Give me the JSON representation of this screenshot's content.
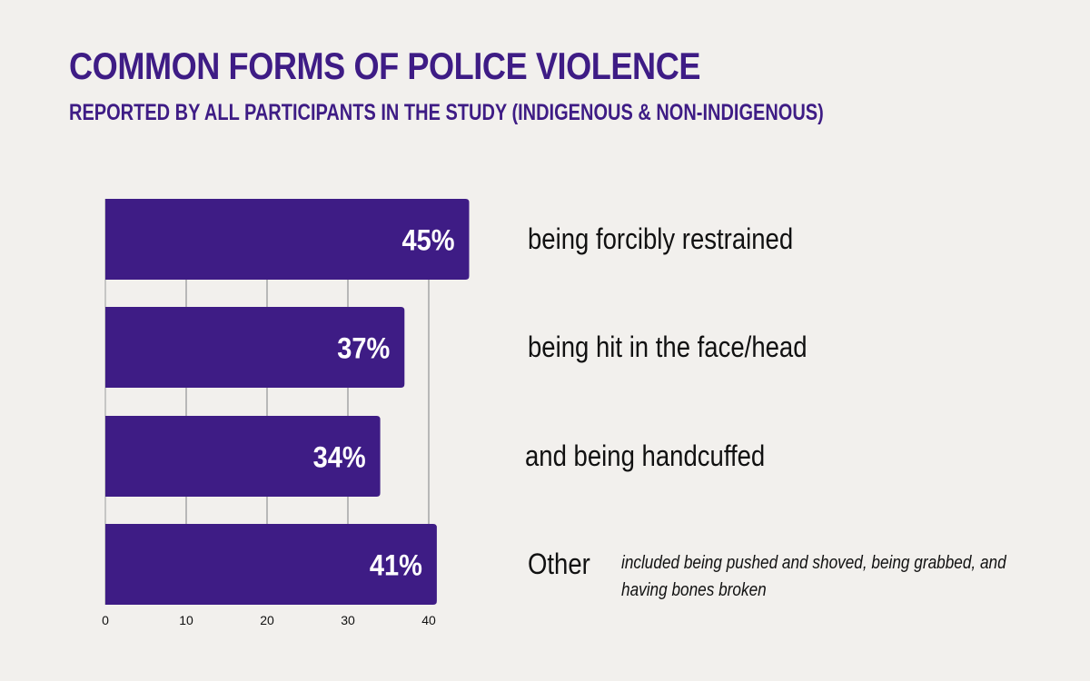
{
  "page": {
    "title": "COMMON FORMS OF POLICE VIOLENCE",
    "subtitle": "REPORTED BY ALL PARTICIPANTS IN THE STUDY (INDIGENOUS & NON-INDIGENOUS)"
  },
  "colors": {
    "background": "#f2f0ed",
    "bar": "#3e1c85",
    "title": "#3e1c85",
    "grid": "#b8b8b8",
    "text": "#111111"
  },
  "chart_data": {
    "type": "bar",
    "orientation": "horizontal",
    "title": "COMMON FORMS OF POLICE VIOLENCE",
    "subtitle": "REPORTED BY ALL PARTICIPANTS IN THE STUDY (INDIGENOUS & NON-INDIGENOUS)",
    "categories": [
      "being forcibly restrained",
      "being hit in the face/head",
      "and being handcuffed",
      "Other"
    ],
    "category_notes": [
      "",
      "",
      "",
      "included being pushed and shoved, being grabbed, and having bones broken"
    ],
    "values": [
      45,
      37,
      34,
      41
    ],
    "value_labels": [
      "45%",
      "37%",
      "34%",
      "41%"
    ],
    "xlim": [
      0,
      40
    ],
    "xticks": [
      0,
      10,
      20,
      30,
      40
    ],
    "grid": true,
    "xlabel": "",
    "ylabel": ""
  }
}
